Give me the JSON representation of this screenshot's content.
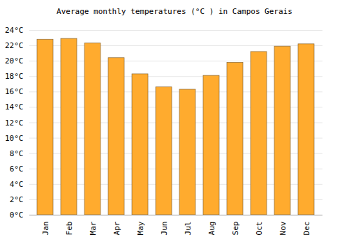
{
  "chart_data": {
    "type": "bar",
    "title": "Average monthly temperatures (°C ) in Campos Gerais",
    "categories": [
      "Jan",
      "Feb",
      "Mar",
      "Apr",
      "May",
      "Jun",
      "Jul",
      "Aug",
      "Sep",
      "Oct",
      "Nov",
      "Dec"
    ],
    "values": [
      22.8,
      22.9,
      22.3,
      20.4,
      18.3,
      16.6,
      16.3,
      18.1,
      19.8,
      21.2,
      21.9,
      22.2
    ],
    "color": "#ffab2e",
    "ylim": [
      0,
      24
    ],
    "yticks": [
      {
        "value": 0,
        "label": "0°C"
      },
      {
        "value": 2,
        "label": "2°C"
      },
      {
        "value": 4,
        "label": "4°C"
      },
      {
        "value": 6,
        "label": "6°C"
      },
      {
        "value": 8,
        "label": "8°C"
      },
      {
        "value": 10,
        "label": "10°C"
      },
      {
        "value": 12,
        "label": "12°C"
      },
      {
        "value": 14,
        "label": "14°C"
      },
      {
        "value": 16,
        "label": "16°C"
      },
      {
        "value": 18,
        "label": "18°C"
      },
      {
        "value": 20,
        "label": "20°C"
      },
      {
        "value": 22,
        "label": "22°C"
      },
      {
        "value": 24,
        "label": "24°C"
      }
    ],
    "grid": true
  }
}
